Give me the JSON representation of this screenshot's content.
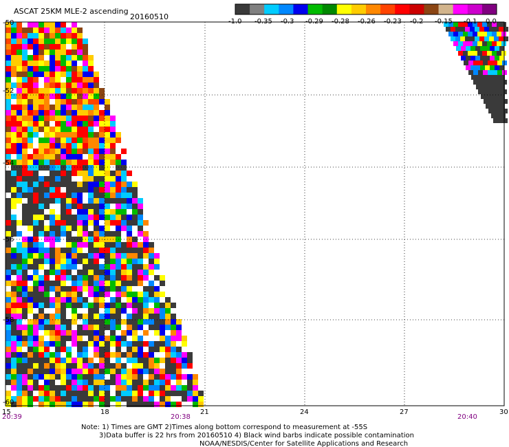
{
  "header": {
    "title": "ASCAT 25KM MLE-2 ascending",
    "date": "20160510"
  },
  "colorbar": {
    "colors": [
      "#3a3a3a",
      "#808080",
      "#00ccff",
      "#0088ff",
      "#0000ee",
      "#00bb00",
      "#008800",
      "#ffff00",
      "#ffcc00",
      "#ff8800",
      "#ff4400",
      "#ff0000",
      "#cc0000",
      "#8b4513",
      "#d2b48c",
      "#ff00ff",
      "#cc00cc",
      "#800080"
    ],
    "labels": [
      "-1.0",
      "-0.35",
      "-0.3",
      "-0.29",
      "-0.28",
      "-0.26",
      "-0.23",
      "-0.2",
      "-0.15",
      "-0.1",
      "0.0"
    ]
  },
  "axes": {
    "lat_labels": [
      "-50",
      "-52",
      "-54",
      "-56",
      "-58",
      "-60"
    ],
    "lon_labels": [
      "15",
      "18",
      "21",
      "24",
      "27",
      "30"
    ],
    "time_labels": [
      "20:39",
      "20:38",
      "20:40"
    ]
  },
  "notes": [
    "Note: 1) Times are GMT 2)Times along bottom correspond to measurement at -55S",
    "3)Data buffer is 22 hrs from 20160510 4) Black wind barbs indicate possible contamination",
    "NOAA/NESDIS/Center for Satellite Applications and Research"
  ]
}
